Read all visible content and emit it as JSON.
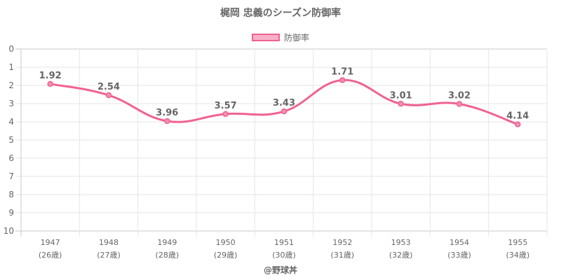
{
  "title": "梶岡 忠義のシーズン防御率",
  "watermark": "@野球丼",
  "colors": {
    "line": "#f06292",
    "grid": "#e6e6e6",
    "text": "#666666"
  },
  "chart_data": {
    "type": "line",
    "title": "梶岡 忠義のシーズン防御率",
    "categories": [
      "1947",
      "1948",
      "1949",
      "1950",
      "1951",
      "1952",
      "1953",
      "1954",
      "1955"
    ],
    "sub_categories": [
      "(26歳)",
      "(27歳)",
      "(28歳)",
      "(29歳)",
      "(30歳)",
      "(31歳)",
      "(32歳)",
      "(33歳)",
      "(34歳)"
    ],
    "series": [
      {
        "name": "防御率",
        "values": [
          1.92,
          2.54,
          3.96,
          3.57,
          3.43,
          1.71,
          3.01,
          3.02,
          4.14
        ],
        "labels": [
          "1.92",
          "2.54",
          "3.96",
          "3.57",
          "3.43",
          "1.71",
          "3.01",
          "3.02",
          "4.14"
        ]
      }
    ],
    "y_ticks": [
      "0",
      "1",
      "2",
      "3",
      "4",
      "5",
      "6",
      "7",
      "8",
      "9",
      "10"
    ],
    "ylim": [
      0,
      10
    ],
    "y_reversed": true,
    "grid": true,
    "legend": "top-center"
  }
}
